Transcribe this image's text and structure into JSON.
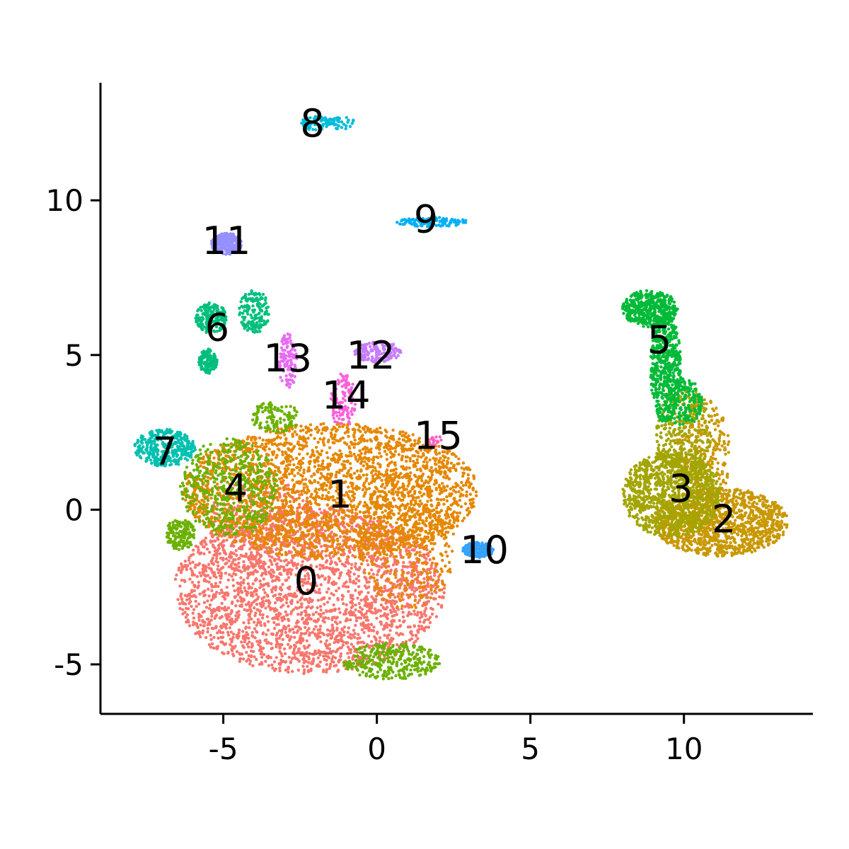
{
  "chart_data": {
    "type": "scatter",
    "title": "",
    "xlabel": "",
    "ylabel": "",
    "xlim": [
      -9,
      14.2
    ],
    "ylim": [
      -6.6,
      13.8
    ],
    "x_ticks": [
      -5,
      0,
      5,
      10
    ],
    "y_ticks": [
      -5,
      0,
      5,
      10
    ],
    "x_tick_labels": [
      "-5",
      "0",
      "5",
      "10"
    ],
    "y_tick_labels": [
      "-5",
      "0",
      "5",
      "10"
    ],
    "grid": false,
    "legend": "none",
    "clusters": [
      {
        "label": "0",
        "color": "#F8766D",
        "center": [
          -2.3,
          -2.4
        ],
        "blobs": [
          {
            "cx": -2.2,
            "cy": -2.6,
            "rx": 4.4,
            "ry": 2.7,
            "n": 2600
          },
          {
            "cx": -3.8,
            "cy": -0.5,
            "rx": 1.8,
            "ry": 1.6,
            "n": 300
          }
        ]
      },
      {
        "label": "1",
        "color": "#E58700",
        "center": [
          -1.2,
          0.4
        ],
        "blobs": [
          {
            "cx": -1.5,
            "cy": 0.6,
            "rx": 4.8,
            "ry": 2.2,
            "n": 2600
          },
          {
            "cx": 1.0,
            "cy": -1.0,
            "rx": 1.6,
            "ry": 2.2,
            "n": 400
          }
        ]
      },
      {
        "label": "2",
        "color": "#C99800",
        "center": [
          11.3,
          -0.4
        ],
        "blobs": [
          {
            "cx": 11.2,
            "cy": -0.4,
            "rx": 2.2,
            "ry": 1.1,
            "n": 1200
          },
          {
            "cx": 10.6,
            "cy": 1.8,
            "rx": 0.9,
            "ry": 1.8,
            "n": 300
          }
        ]
      },
      {
        "label": "3",
        "color": "#A3A500",
        "center": [
          9.9,
          0.6
        ],
        "blobs": [
          {
            "cx": 9.6,
            "cy": 0.5,
            "rx": 1.6,
            "ry": 1.4,
            "n": 1100
          },
          {
            "cx": 10.0,
            "cy": 2.5,
            "rx": 0.9,
            "ry": 1.5,
            "n": 300
          }
        ]
      },
      {
        "label": "4",
        "color": "#6BB100",
        "center": [
          -4.6,
          0.6
        ],
        "blobs": [
          {
            "cx": -4.8,
            "cy": 0.7,
            "rx": 1.6,
            "ry": 1.6,
            "n": 500
          },
          {
            "cx": -6.4,
            "cy": -0.8,
            "rx": 0.5,
            "ry": 0.5,
            "n": 150
          },
          {
            "cx": 0.5,
            "cy": -4.9,
            "rx": 1.6,
            "ry": 0.6,
            "n": 300
          },
          {
            "cx": -3.3,
            "cy": 3.0,
            "rx": 0.8,
            "ry": 0.5,
            "n": 120
          }
        ]
      },
      {
        "label": "5",
        "color": "#00BA38",
        "center": [
          9.2,
          5.4
        ],
        "blobs": [
          {
            "cx": 8.9,
            "cy": 6.5,
            "rx": 0.9,
            "ry": 0.6,
            "n": 450
          },
          {
            "cx": 9.4,
            "cy": 4.6,
            "rx": 0.5,
            "ry": 1.8,
            "n": 550
          },
          {
            "cx": 10.0,
            "cy": 3.5,
            "rx": 0.6,
            "ry": 0.8,
            "n": 150
          }
        ]
      },
      {
        "label": "6",
        "color": "#00BF7D",
        "center": [
          -5.2,
          5.8
        ],
        "blobs": [
          {
            "cx": -5.4,
            "cy": 6.2,
            "rx": 0.5,
            "ry": 0.5,
            "n": 180
          },
          {
            "cx": -5.5,
            "cy": 4.8,
            "rx": 0.3,
            "ry": 0.4,
            "n": 120
          },
          {
            "cx": -4.0,
            "cy": 6.4,
            "rx": 0.5,
            "ry": 0.7,
            "n": 150
          }
        ]
      },
      {
        "label": "7",
        "color": "#00C0AF",
        "center": [
          -6.9,
          1.8
        ],
        "blobs": [
          {
            "cx": -6.9,
            "cy": 2.0,
            "rx": 1.0,
            "ry": 0.6,
            "n": 350
          }
        ]
      },
      {
        "label": "8",
        "color": "#00BCD8",
        "center": [
          -2.1,
          12.4
        ],
        "blobs": [
          {
            "cx": -2.0,
            "cy": 12.5,
            "rx": 0.5,
            "ry": 0.25,
            "n": 70
          },
          {
            "cx": -1.2,
            "cy": 12.5,
            "rx": 0.5,
            "ry": 0.2,
            "n": 40
          }
        ]
      },
      {
        "label": "9",
        "color": "#00B0F6",
        "center": [
          1.6,
          9.3
        ],
        "blobs": [
          {
            "cx": 1.8,
            "cy": 9.3,
            "rx": 1.2,
            "ry": 0.15,
            "n": 120
          }
        ]
      },
      {
        "label": "10",
        "color": "#35A2FF",
        "center": [
          3.5,
          -1.4
        ],
        "blobs": [
          {
            "cx": 3.3,
            "cy": -1.3,
            "rx": 0.5,
            "ry": 0.25,
            "n": 200
          }
        ]
      },
      {
        "label": "11",
        "color": "#9590FF",
        "center": [
          -4.9,
          8.6
        ],
        "blobs": [
          {
            "cx": -4.9,
            "cy": 8.6,
            "rx": 0.5,
            "ry": 0.35,
            "n": 300
          }
        ]
      },
      {
        "label": "12",
        "color": "#C77CFF",
        "center": [
          -0.2,
          4.9
        ],
        "blobs": [
          {
            "cx": 0.0,
            "cy": 5.1,
            "rx": 0.8,
            "ry": 0.35,
            "n": 150
          }
        ]
      },
      {
        "label": "13",
        "color": "#E76BF3",
        "center": [
          -2.9,
          4.8
        ],
        "blobs": [
          {
            "cx": -2.9,
            "cy": 4.8,
            "rx": 0.3,
            "ry": 0.9,
            "n": 120
          }
        ]
      },
      {
        "label": "14",
        "color": "#FA62DB",
        "center": [
          -1.0,
          3.6
        ],
        "blobs": [
          {
            "cx": -1.1,
            "cy": 3.5,
            "rx": 0.4,
            "ry": 0.9,
            "n": 120
          }
        ]
      },
      {
        "label": "15",
        "color": "#FF62BC",
        "center": [
          2.0,
          2.3
        ],
        "blobs": [
          {
            "cx": 1.9,
            "cy": 2.2,
            "rx": 0.25,
            "ry": 0.2,
            "n": 20
          }
        ]
      }
    ]
  }
}
